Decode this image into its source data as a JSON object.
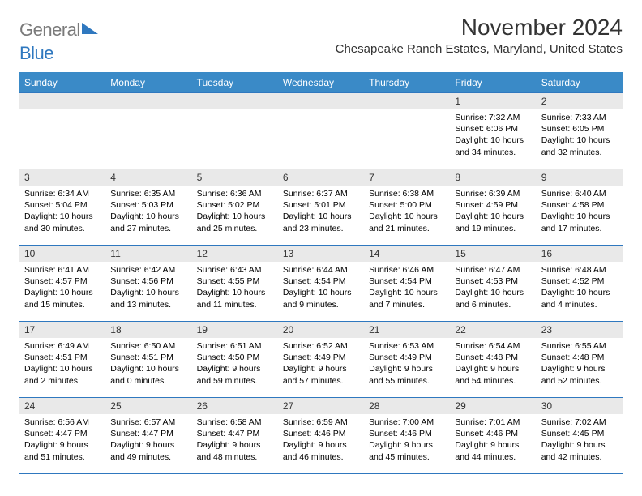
{
  "header": {
    "logo_general": "General",
    "logo_blue": "Blue",
    "month_title": "November 2024",
    "location": "Chesapeake Ranch Estates, Maryland, United States"
  },
  "colors": {
    "header_bg": "#3a8ac7",
    "header_text": "#ffffff",
    "date_bg": "#e9e9e9",
    "border": "#2f78bf",
    "logo_gray": "#7a7a7a",
    "logo_blue": "#2f78bf"
  },
  "day_names": [
    "Sunday",
    "Monday",
    "Tuesday",
    "Wednesday",
    "Thursday",
    "Friday",
    "Saturday"
  ],
  "weeks": [
    [
      {
        "date": "",
        "sunrise": "",
        "sunset": "",
        "daylight": ""
      },
      {
        "date": "",
        "sunrise": "",
        "sunset": "",
        "daylight": ""
      },
      {
        "date": "",
        "sunrise": "",
        "sunset": "",
        "daylight": ""
      },
      {
        "date": "",
        "sunrise": "",
        "sunset": "",
        "daylight": ""
      },
      {
        "date": "",
        "sunrise": "",
        "sunset": "",
        "daylight": ""
      },
      {
        "date": "1",
        "sunrise": "Sunrise: 7:32 AM",
        "sunset": "Sunset: 6:06 PM",
        "daylight": "Daylight: 10 hours and 34 minutes."
      },
      {
        "date": "2",
        "sunrise": "Sunrise: 7:33 AM",
        "sunset": "Sunset: 6:05 PM",
        "daylight": "Daylight: 10 hours and 32 minutes."
      }
    ],
    [
      {
        "date": "3",
        "sunrise": "Sunrise: 6:34 AM",
        "sunset": "Sunset: 5:04 PM",
        "daylight": "Daylight: 10 hours and 30 minutes."
      },
      {
        "date": "4",
        "sunrise": "Sunrise: 6:35 AM",
        "sunset": "Sunset: 5:03 PM",
        "daylight": "Daylight: 10 hours and 27 minutes."
      },
      {
        "date": "5",
        "sunrise": "Sunrise: 6:36 AM",
        "sunset": "Sunset: 5:02 PM",
        "daylight": "Daylight: 10 hours and 25 minutes."
      },
      {
        "date": "6",
        "sunrise": "Sunrise: 6:37 AM",
        "sunset": "Sunset: 5:01 PM",
        "daylight": "Daylight: 10 hours and 23 minutes."
      },
      {
        "date": "7",
        "sunrise": "Sunrise: 6:38 AM",
        "sunset": "Sunset: 5:00 PM",
        "daylight": "Daylight: 10 hours and 21 minutes."
      },
      {
        "date": "8",
        "sunrise": "Sunrise: 6:39 AM",
        "sunset": "Sunset: 4:59 PM",
        "daylight": "Daylight: 10 hours and 19 minutes."
      },
      {
        "date": "9",
        "sunrise": "Sunrise: 6:40 AM",
        "sunset": "Sunset: 4:58 PM",
        "daylight": "Daylight: 10 hours and 17 minutes."
      }
    ],
    [
      {
        "date": "10",
        "sunrise": "Sunrise: 6:41 AM",
        "sunset": "Sunset: 4:57 PM",
        "daylight": "Daylight: 10 hours and 15 minutes."
      },
      {
        "date": "11",
        "sunrise": "Sunrise: 6:42 AM",
        "sunset": "Sunset: 4:56 PM",
        "daylight": "Daylight: 10 hours and 13 minutes."
      },
      {
        "date": "12",
        "sunrise": "Sunrise: 6:43 AM",
        "sunset": "Sunset: 4:55 PM",
        "daylight": "Daylight: 10 hours and 11 minutes."
      },
      {
        "date": "13",
        "sunrise": "Sunrise: 6:44 AM",
        "sunset": "Sunset: 4:54 PM",
        "daylight": "Daylight: 10 hours and 9 minutes."
      },
      {
        "date": "14",
        "sunrise": "Sunrise: 6:46 AM",
        "sunset": "Sunset: 4:54 PM",
        "daylight": "Daylight: 10 hours and 7 minutes."
      },
      {
        "date": "15",
        "sunrise": "Sunrise: 6:47 AM",
        "sunset": "Sunset: 4:53 PM",
        "daylight": "Daylight: 10 hours and 6 minutes."
      },
      {
        "date": "16",
        "sunrise": "Sunrise: 6:48 AM",
        "sunset": "Sunset: 4:52 PM",
        "daylight": "Daylight: 10 hours and 4 minutes."
      }
    ],
    [
      {
        "date": "17",
        "sunrise": "Sunrise: 6:49 AM",
        "sunset": "Sunset: 4:51 PM",
        "daylight": "Daylight: 10 hours and 2 minutes."
      },
      {
        "date": "18",
        "sunrise": "Sunrise: 6:50 AM",
        "sunset": "Sunset: 4:51 PM",
        "daylight": "Daylight: 10 hours and 0 minutes."
      },
      {
        "date": "19",
        "sunrise": "Sunrise: 6:51 AM",
        "sunset": "Sunset: 4:50 PM",
        "daylight": "Daylight: 9 hours and 59 minutes."
      },
      {
        "date": "20",
        "sunrise": "Sunrise: 6:52 AM",
        "sunset": "Sunset: 4:49 PM",
        "daylight": "Daylight: 9 hours and 57 minutes."
      },
      {
        "date": "21",
        "sunrise": "Sunrise: 6:53 AM",
        "sunset": "Sunset: 4:49 PM",
        "daylight": "Daylight: 9 hours and 55 minutes."
      },
      {
        "date": "22",
        "sunrise": "Sunrise: 6:54 AM",
        "sunset": "Sunset: 4:48 PM",
        "daylight": "Daylight: 9 hours and 54 minutes."
      },
      {
        "date": "23",
        "sunrise": "Sunrise: 6:55 AM",
        "sunset": "Sunset: 4:48 PM",
        "daylight": "Daylight: 9 hours and 52 minutes."
      }
    ],
    [
      {
        "date": "24",
        "sunrise": "Sunrise: 6:56 AM",
        "sunset": "Sunset: 4:47 PM",
        "daylight": "Daylight: 9 hours and 51 minutes."
      },
      {
        "date": "25",
        "sunrise": "Sunrise: 6:57 AM",
        "sunset": "Sunset: 4:47 PM",
        "daylight": "Daylight: 9 hours and 49 minutes."
      },
      {
        "date": "26",
        "sunrise": "Sunrise: 6:58 AM",
        "sunset": "Sunset: 4:47 PM",
        "daylight": "Daylight: 9 hours and 48 minutes."
      },
      {
        "date": "27",
        "sunrise": "Sunrise: 6:59 AM",
        "sunset": "Sunset: 4:46 PM",
        "daylight": "Daylight: 9 hours and 46 minutes."
      },
      {
        "date": "28",
        "sunrise": "Sunrise: 7:00 AM",
        "sunset": "Sunset: 4:46 PM",
        "daylight": "Daylight: 9 hours and 45 minutes."
      },
      {
        "date": "29",
        "sunrise": "Sunrise: 7:01 AM",
        "sunset": "Sunset: 4:46 PM",
        "daylight": "Daylight: 9 hours and 44 minutes."
      },
      {
        "date": "30",
        "sunrise": "Sunrise: 7:02 AM",
        "sunset": "Sunset: 4:45 PM",
        "daylight": "Daylight: 9 hours and 42 minutes."
      }
    ]
  ]
}
